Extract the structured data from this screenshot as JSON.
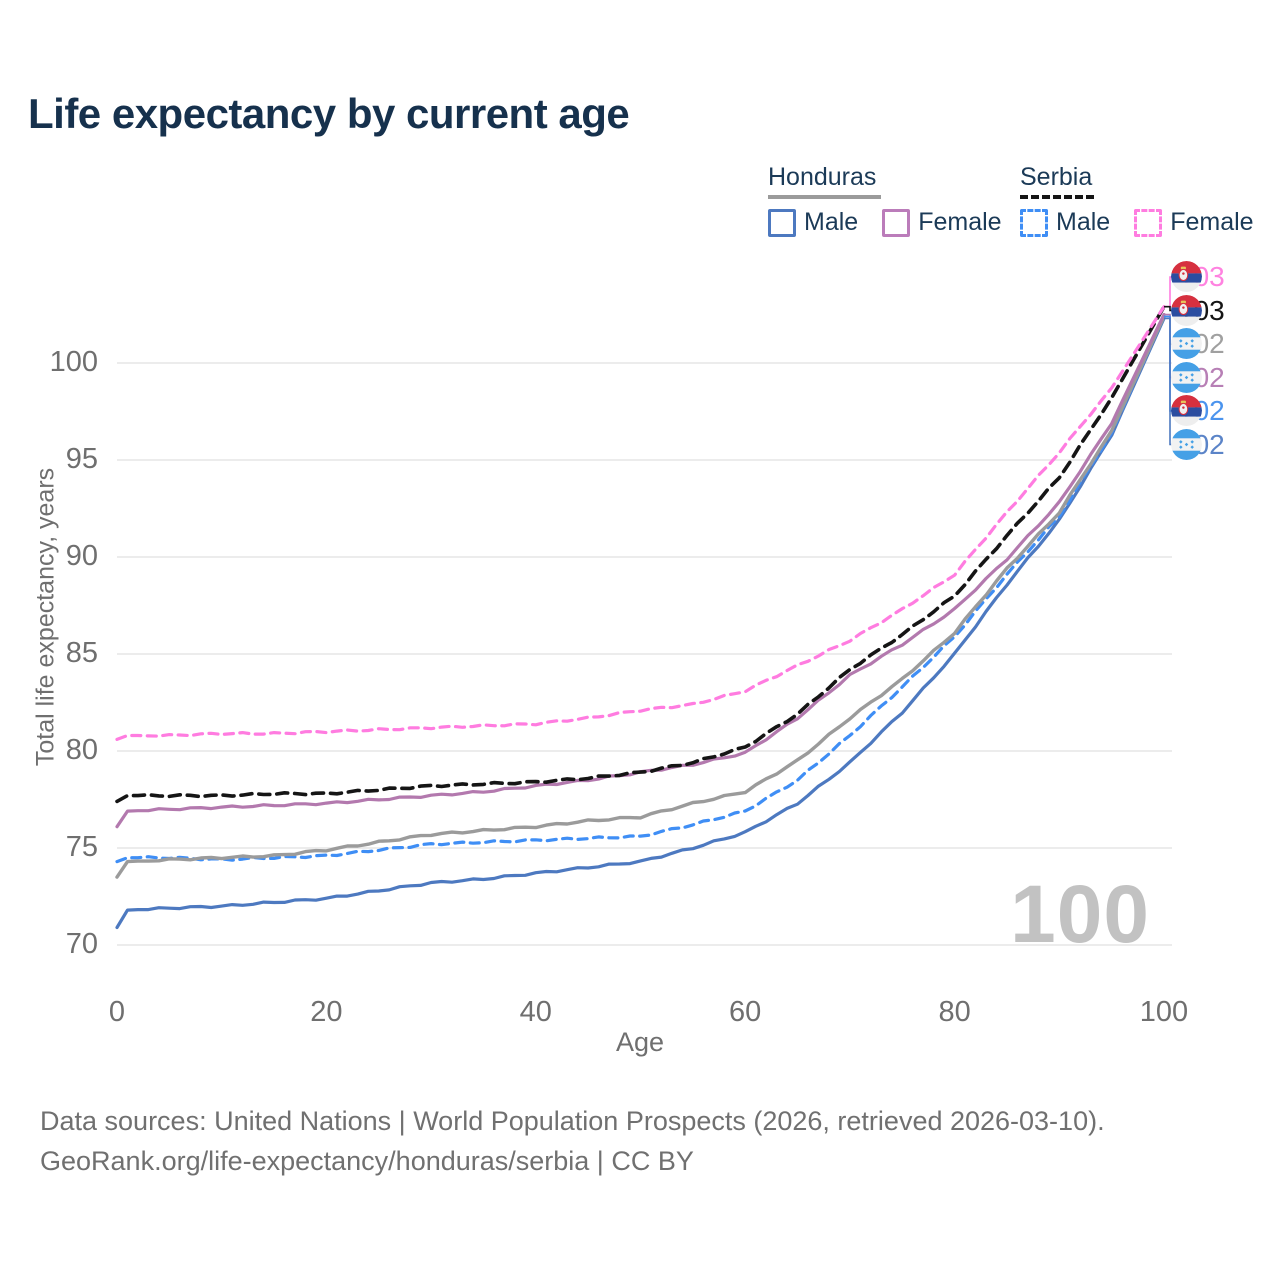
{
  "title": "Life expectancy by current age",
  "legend": {
    "groups": [
      {
        "id": "honduras",
        "label": "Honduras",
        "underline_style": "solid",
        "underline_color": "#9b9b9b",
        "underline_width": 113,
        "items": [
          {
            "id": "honduras_male",
            "label": "Male",
            "box_color": "#4d79c0",
            "box_style": "solid"
          },
          {
            "id": "honduras_female",
            "label": "Female",
            "box_color": "#bb7cba",
            "box_style": "solid"
          }
        ]
      },
      {
        "id": "serbia",
        "label": "Serbia",
        "underline_style": "dashed",
        "underline_color": "#151515",
        "underline_width": 74,
        "items": [
          {
            "id": "serbia_male",
            "label": "Male",
            "box_color": "#3f8ef5",
            "box_style": "dashed"
          },
          {
            "id": "serbia_female",
            "label": "Female",
            "box_color": "#ff7ce0",
            "box_style": "dashed"
          }
        ]
      }
    ]
  },
  "chart_data": {
    "type": "line",
    "title": "Life expectancy by current age",
    "xlabel": "Age",
    "ylabel": "Total life expectancy, years",
    "x_ticks": [
      0,
      20,
      40,
      60,
      80,
      100
    ],
    "y_ticks": [
      70,
      75,
      80,
      85,
      90,
      95,
      100
    ],
    "xlim": [
      0,
      100
    ],
    "ylim": [
      70,
      103
    ],
    "grid": true,
    "legend_position": "top-right",
    "x": [
      0,
      1,
      5,
      10,
      15,
      20,
      25,
      30,
      35,
      40,
      45,
      50,
      55,
      60,
      65,
      70,
      75,
      80,
      85,
      90,
      95,
      100
    ],
    "series": [
      {
        "key": "honduras_male",
        "name": "Honduras Male",
        "color": "#4d79c0",
        "dash": false,
        "width": 3.2,
        "values": [
          70.9,
          71.8,
          71.9,
          72.0,
          72.2,
          72.4,
          72.8,
          73.2,
          73.4,
          73.7,
          74.0,
          74.3,
          75.0,
          75.8,
          77.3,
          79.4,
          82.0,
          85.0,
          88.6,
          91.9,
          96.3,
          102.3
        ]
      },
      {
        "key": "serbia_male",
        "name": "Serbia Male",
        "color": "#3f8ef5",
        "dash": true,
        "width": 3.2,
        "values": [
          74.3,
          74.5,
          74.5,
          74.4,
          74.5,
          74.6,
          74.9,
          75.2,
          75.3,
          75.4,
          75.5,
          75.6,
          76.2,
          76.9,
          78.5,
          80.8,
          83.3,
          85.9,
          89.1,
          92.1,
          96.4,
          102.4
        ]
      },
      {
        "key": "honduras_both",
        "name": "Honduras (both sexes)",
        "color": "#9b9b9b",
        "dash": false,
        "width": 3.4,
        "values": [
          73.5,
          74.3,
          74.4,
          74.5,
          74.6,
          74.9,
          75.3,
          75.7,
          75.9,
          76.1,
          76.4,
          76.6,
          77.3,
          77.9,
          79.5,
          81.7,
          83.7,
          86.1,
          89.4,
          92.3,
          96.5,
          102.4
        ]
      },
      {
        "key": "honduras_female",
        "name": "Honduras Female",
        "color": "#b379ae",
        "dash": false,
        "width": 3.2,
        "values": [
          76.1,
          76.9,
          77.0,
          77.1,
          77.2,
          77.3,
          77.5,
          77.7,
          77.9,
          78.2,
          78.5,
          78.9,
          79.3,
          79.9,
          81.7,
          83.9,
          85.5,
          87.3,
          89.9,
          92.8,
          96.9,
          102.5
        ]
      },
      {
        "key": "serbia_both",
        "name": "Serbia (both sexes)",
        "color": "#151515",
        "dash": true,
        "width": 3.6,
        "values": [
          77.4,
          77.7,
          77.7,
          77.7,
          77.8,
          77.8,
          78.0,
          78.2,
          78.3,
          78.4,
          78.6,
          78.9,
          79.4,
          80.2,
          81.9,
          84.2,
          86.0,
          88.0,
          91.1,
          94.1,
          98.2,
          102.9
        ]
      },
      {
        "key": "serbia_female",
        "name": "Serbia Female",
        "color": "#ff7ce0",
        "dash": true,
        "width": 3.2,
        "values": [
          80.6,
          80.8,
          80.8,
          80.9,
          80.9,
          81.0,
          81.1,
          81.2,
          81.3,
          81.4,
          81.7,
          82.1,
          82.4,
          83.1,
          84.4,
          85.7,
          87.3,
          89.1,
          92.3,
          95.4,
          98.7,
          102.9
        ]
      }
    ]
  },
  "end_labels": [
    {
      "series_key": "serbia_female",
      "value": "103",
      "color": "#ff82e0",
      "flag": "serbia"
    },
    {
      "series_key": "serbia_both",
      "value": "103",
      "color": "#151515",
      "flag": "serbia"
    },
    {
      "series_key": "honduras_both",
      "value": "102",
      "color": "#a0a0a0",
      "flag": "honduras"
    },
    {
      "series_key": "honduras_female",
      "value": "102",
      "color": "#b77fb5",
      "flag": "honduras"
    },
    {
      "series_key": "serbia_male",
      "value": "102",
      "color": "#4b94ee",
      "flag": "serbia"
    },
    {
      "series_key": "honduras_male",
      "value": "102",
      "color": "#5b84c8",
      "flag": "honduras"
    }
  ],
  "watermark": "100",
  "flags": {
    "serbia": {
      "red": "#d6303f",
      "blue": "#2b4da0",
      "white": "#eeeeee",
      "crest": "#f0f0f0",
      "crown": "#e8c55a"
    },
    "honduras": {
      "blue": "#45a0e6",
      "white": "#f2f2f2",
      "star": "#45a0e6"
    }
  },
  "footer": {
    "line1": "Data sources: United Nations | World Population Prospects (2026, retrieved 2026-03-10).",
    "line2": "GeoRank.org/life-expectancy/honduras/serbia | CC BY"
  }
}
